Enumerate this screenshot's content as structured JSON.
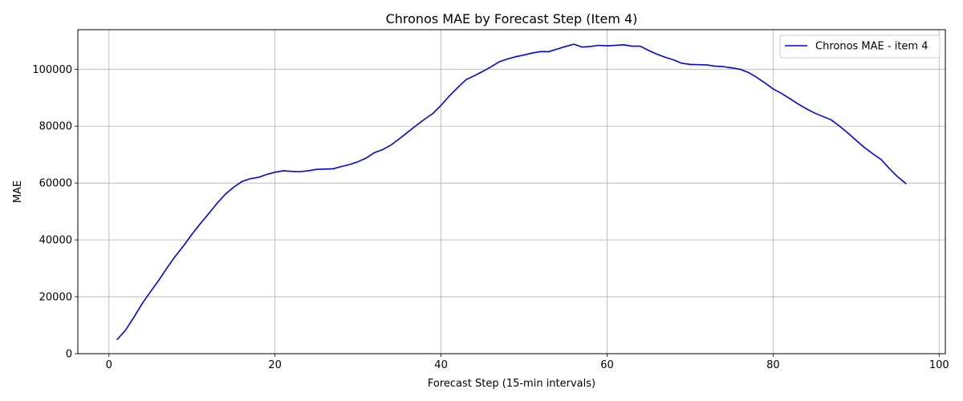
{
  "chart_data": {
    "type": "line",
    "title": "Chronos MAE by Forecast Step (Item 4)",
    "xlabel": "Forecast Step (15-min intervals)",
    "ylabel": "MAE",
    "xlim": [
      -3.75,
      100.75
    ],
    "ylim": [
      0,
      113900
    ],
    "xticks": [
      0,
      20,
      40,
      60,
      80,
      100
    ],
    "xtick_labels": [
      "0",
      "20",
      "40",
      "60",
      "80",
      "100"
    ],
    "yticks": [
      0,
      20000,
      40000,
      60000,
      80000,
      100000
    ],
    "ytick_labels": [
      "0",
      "20000",
      "40000",
      "60000",
      "80000",
      "100000"
    ],
    "grid": true,
    "legend_position": "top-right",
    "series": [
      {
        "name": "Chronos MAE - item 4",
        "color": "#0000ff",
        "x": [
          1,
          2,
          3,
          4,
          5,
          6,
          7,
          8,
          9,
          10,
          11,
          12,
          13,
          14,
          15,
          16,
          17,
          18,
          19,
          20,
          21,
          22,
          23,
          24,
          25,
          26,
          27,
          28,
          29,
          30,
          31,
          32,
          33,
          34,
          35,
          36,
          37,
          38,
          39,
          40,
          41,
          42,
          43,
          44,
          45,
          46,
          47,
          48,
          49,
          50,
          51,
          52,
          53,
          54,
          55,
          56,
          57,
          58,
          59,
          60,
          61,
          62,
          63,
          64,
          65,
          66,
          67,
          68,
          69,
          70,
          71,
          72,
          73,
          74,
          75,
          76,
          77,
          78,
          79,
          80,
          81,
          82,
          83,
          84,
          85,
          86,
          87,
          88,
          89,
          90,
          91,
          92,
          93,
          94,
          95,
          96
        ],
        "y": [
          5000,
          8300,
          12800,
          17600,
          21800,
          25800,
          30200,
          34300,
          38000,
          42000,
          45700,
          49200,
          52800,
          56000,
          58500,
          60500,
          61500,
          62000,
          63000,
          63800,
          64300,
          64100,
          64000,
          64300,
          64800,
          64900,
          65000,
          65800,
          66500,
          67500,
          68800,
          70700,
          71800,
          73400,
          75600,
          77900,
          80200,
          82400,
          84400,
          87300,
          90600,
          93500,
          96300,
          97700,
          99200,
          100800,
          102600,
          103600,
          104400,
          105000,
          105700,
          106200,
          106200,
          107100,
          108000,
          108800,
          107800,
          108000,
          108400,
          108200,
          108400,
          108600,
          108100,
          108100,
          106600,
          105300,
          104200,
          103300,
          102100,
          101700,
          101600,
          101500,
          101100,
          100900,
          100500,
          100000,
          98900,
          97200,
          95200,
          93100,
          91500,
          89700,
          87800,
          86100,
          84600,
          83400,
          82200,
          80000,
          77600,
          75000,
          72500,
          70300,
          68300,
          65100,
          62200,
          59800
        ]
      }
    ]
  }
}
